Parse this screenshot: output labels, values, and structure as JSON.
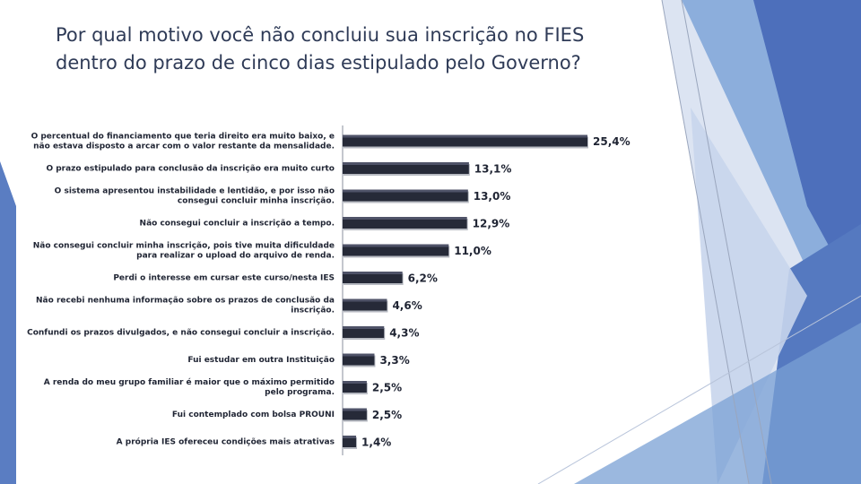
{
  "title_lines": [
    "Por qual motivo você não concluiu sua inscrição no FIES",
    "dentro do prazo de cinco dias estipulado pelo Governo?"
  ],
  "colors": {
    "title": "#2f3b57",
    "bar": "#262a38",
    "bar_highlight": "#6a7088",
    "deco_dark": "#4a6db8",
    "deco_mid": "#6d95d0",
    "deco_light": "#c5d3ea"
  },
  "chart_data": {
    "type": "bar",
    "orientation": "horizontal",
    "value_suffix": "%",
    "categories": [
      [
        "O percentual do financiamento que teria direito era muito baixo, e",
        "não estava disposto a arcar com o valor restante da mensalidade."
      ],
      [
        "O prazo estipulado para conclusão da inscrição era muito curto"
      ],
      [
        "O sistema apresentou instabilidade e lentidão, e por isso não",
        "consegui concluir minha inscrição."
      ],
      [
        "Não consegui concluir a inscrição a tempo."
      ],
      [
        "Não consegui concluir minha inscrição, pois tive muita dificuldade",
        "para realizar o upload do arquivo de renda."
      ],
      [
        "Perdi o interesse em cursar este curso/nesta IES"
      ],
      [
        "Não recebi nenhuma informação sobre os prazos de conclusão da",
        "inscrição."
      ],
      [
        "Confundi os prazos divulgados, e não consegui concluir a inscrição."
      ],
      [
        "Fui estudar em outra Instituição"
      ],
      [
        "A renda do meu grupo familiar é maior que o máximo permitido",
        "pelo programa."
      ],
      [
        "Fui contemplado com bolsa PROUNI"
      ],
      [
        "A própria IES ofereceu condições mais atrativas"
      ]
    ],
    "values": [
      25.4,
      13.1,
      13.0,
      12.9,
      11.0,
      6.2,
      4.6,
      4.3,
      3.3,
      2.5,
      2.5,
      1.4
    ],
    "value_labels": [
      "25,4%",
      "13,1%",
      "13,0%",
      "12,9%",
      "11,0%",
      "6,2%",
      "4,6%",
      "4,3%",
      "3,3%",
      "2,5%",
      "2,5%",
      "1,4%"
    ],
    "xlim": [
      0,
      25.4
    ],
    "grid": false,
    "legend": "none"
  }
}
